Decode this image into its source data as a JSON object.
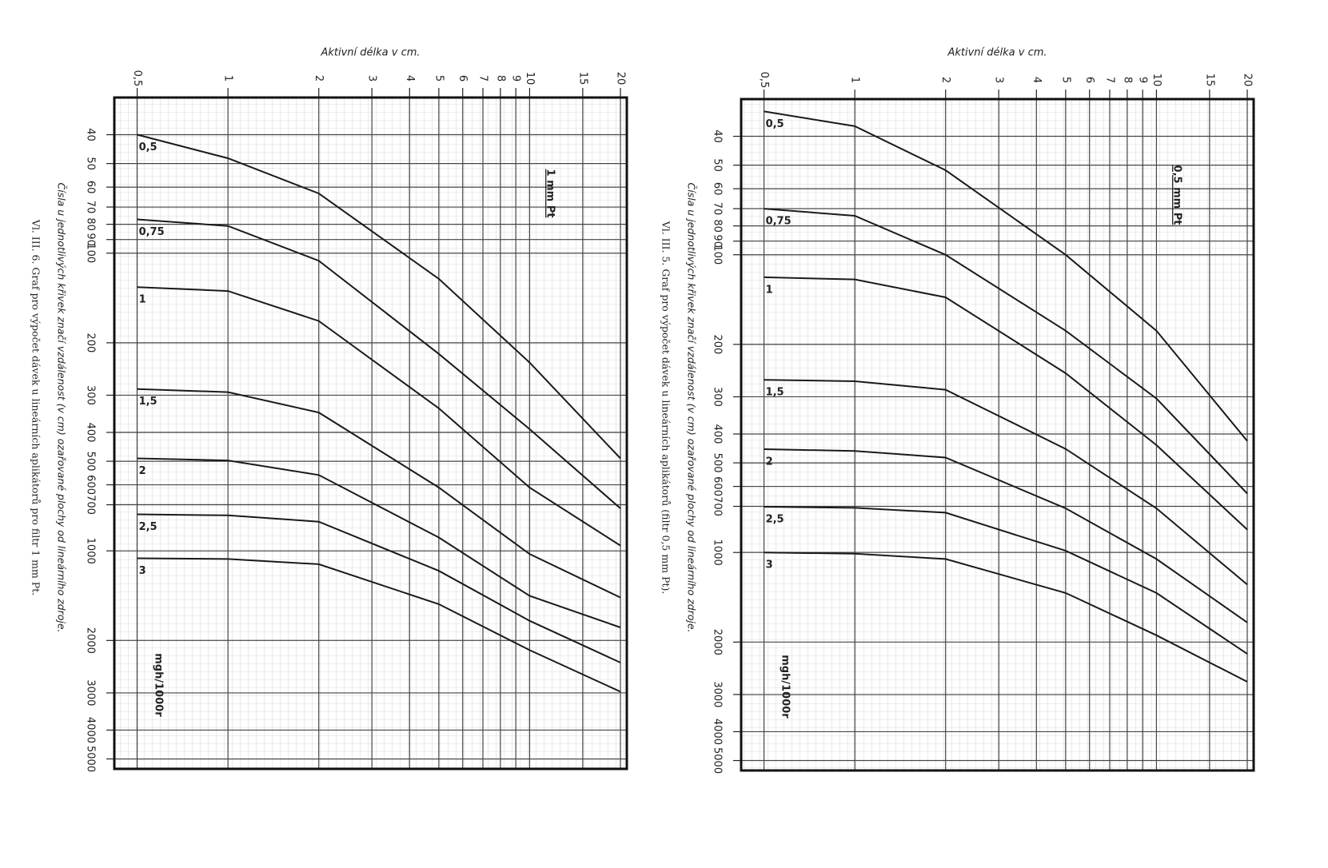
{
  "chart_data": [
    {
      "type": "line",
      "title": "1 mm Pt",
      "x_label": "Aktivní délka v cm.",
      "y_label": "mgh/1000r",
      "caption": "Čísla u jednotlivých křivek značí vzdálenost (v cm) ozařované plochy od lineárního zdroje.",
      "figure_caption": "Vl. III. 6. Graf pro výpočet dávek u lineárních aplikátorů pro filtr 1 mm Pt.",
      "log_x": true,
      "log_y": true,
      "grid": true,
      "color": "#1a1a1a",
      "xlim": [
        0.42,
        21
      ],
      "ylim": [
        30,
        5400
      ],
      "xticks": [
        {
          "value": 0.5,
          "label": "0,5"
        },
        1,
        2,
        3,
        4,
        5,
        6,
        7,
        8,
        9,
        10,
        15,
        20
      ],
      "yticks": [
        40,
        50,
        60,
        70,
        80,
        90,
        100,
        200,
        300,
        400,
        500,
        600,
        700,
        1000,
        2000,
        3000,
        4000,
        5000
      ],
      "x": [
        0.5,
        1,
        2,
        5,
        10,
        20
      ],
      "series": [
        {
          "name": "0,5",
          "values": [
            40,
            48,
            63,
            122,
            233,
            489
          ]
        },
        {
          "name": "0,75",
          "values": [
            77,
            81,
            106,
            218,
            390,
            720
          ]
        },
        {
          "name": "1",
          "values": [
            130,
            134,
            169,
            332,
            613,
            960
          ]
        },
        {
          "name": "1,5",
          "values": [
            286,
            293,
            343,
            613,
            1025,
            1435
          ]
        },
        {
          "name": "2",
          "values": [
            489,
            497,
            556,
            902,
            1416,
            1808
          ]
        },
        {
          "name": "2,5",
          "values": [
            754,
            760,
            798,
            1167,
            1718,
            2373
          ]
        },
        {
          "name": "3",
          "values": [
            1059,
            1065,
            1109,
            1510,
            2155,
            2972
          ]
        }
      ]
    },
    {
      "type": "line",
      "title": "0,5 mm Pt",
      "x_label": "Aktivní délka v cm.",
      "y_label": "mgh/1000r",
      "caption": "Čísla u jednotlivých křivek značí vzdálenost (v cm) ozařované plochy od lineárního zdroje.",
      "figure_caption": "Vl. III. 5. Graf pro výpočet dávek u lineárních aplikátorů (filtr 0,5 mm Pt).",
      "log_x": true,
      "log_y": true,
      "grid": true,
      "color": "#1a1a1a",
      "xlim": [
        0.42,
        21
      ],
      "ylim": [
        30,
        5400
      ],
      "xticks": [
        {
          "value": 0.5,
          "label": "0,5"
        },
        1,
        2,
        3,
        4,
        5,
        6,
        7,
        8,
        9,
        10,
        15,
        20
      ],
      "yticks": [
        40,
        50,
        60,
        70,
        80,
        90,
        100,
        200,
        300,
        400,
        500,
        600,
        700,
        1000,
        2000,
        3000,
        4000,
        5000
      ],
      "x": [
        0.5,
        1,
        2,
        5,
        10,
        20
      ],
      "series": [
        {
          "name": "0,5",
          "values": [
            33,
            37,
            52,
            100,
            180,
            422
          ]
        },
        {
          "name": "0,75",
          "values": [
            70,
            74,
            100,
            180,
            304,
            634
          ]
        },
        {
          "name": "1",
          "values": [
            119,
            121,
            139,
            250,
            436,
            838
          ]
        },
        {
          "name": "1,5",
          "values": [
            263,
            266,
            284,
            449,
            711,
            1282
          ]
        },
        {
          "name": "2",
          "values": [
            450,
            456,
            480,
            711,
            1052,
            1719
          ]
        },
        {
          "name": "2,5",
          "values": [
            702,
            708,
            735,
            987,
            1368,
            2191
          ]
        },
        {
          "name": "3",
          "values": [
            1000,
            1010,
            1052,
            1368,
            1897,
            2719
          ]
        }
      ]
    }
  ]
}
